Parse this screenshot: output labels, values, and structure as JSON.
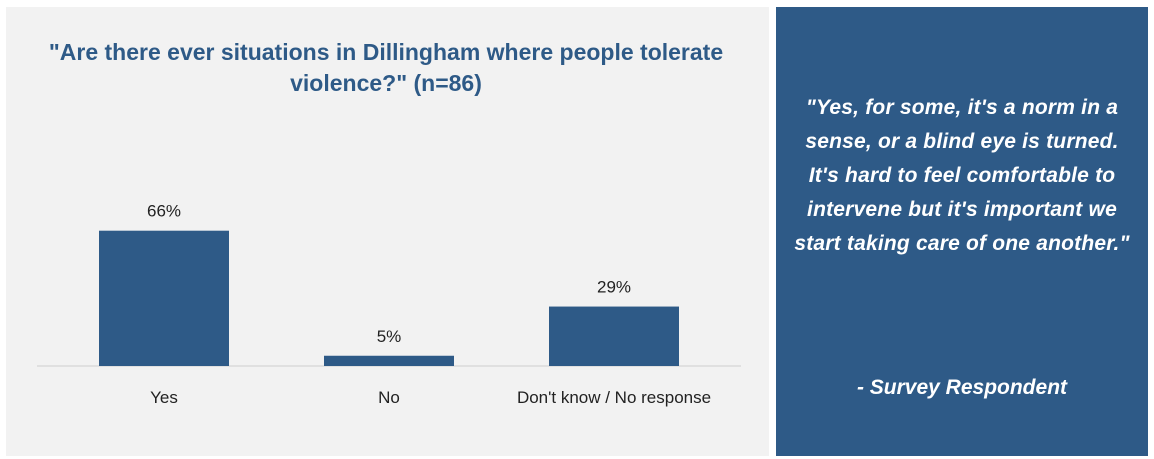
{
  "chart_data": {
    "type": "bar",
    "title": "\"Are there ever situations in Dillingham where people tolerate violence?\" (n=86)",
    "categories": [
      "Yes",
      "No",
      "Don't know / No response"
    ],
    "values": [
      66,
      5,
      29
    ],
    "value_labels": [
      "66%",
      "5%",
      "29%"
    ],
    "unit": "%",
    "ylim": [
      0,
      100
    ],
    "grid": false,
    "legend": "none",
    "bar_color": "#2e5a87",
    "axis_color": "#d9d9d9"
  },
  "quote": {
    "text": "\"Yes, for some, it's a norm in a sense, or a blind eye is turned. It's hard to feel comfortable to intervene but it's important we start taking care of one another.\"",
    "attribution": "- Survey Respondent",
    "background_color": "#2e5a87",
    "text_color": "#ffffff"
  }
}
